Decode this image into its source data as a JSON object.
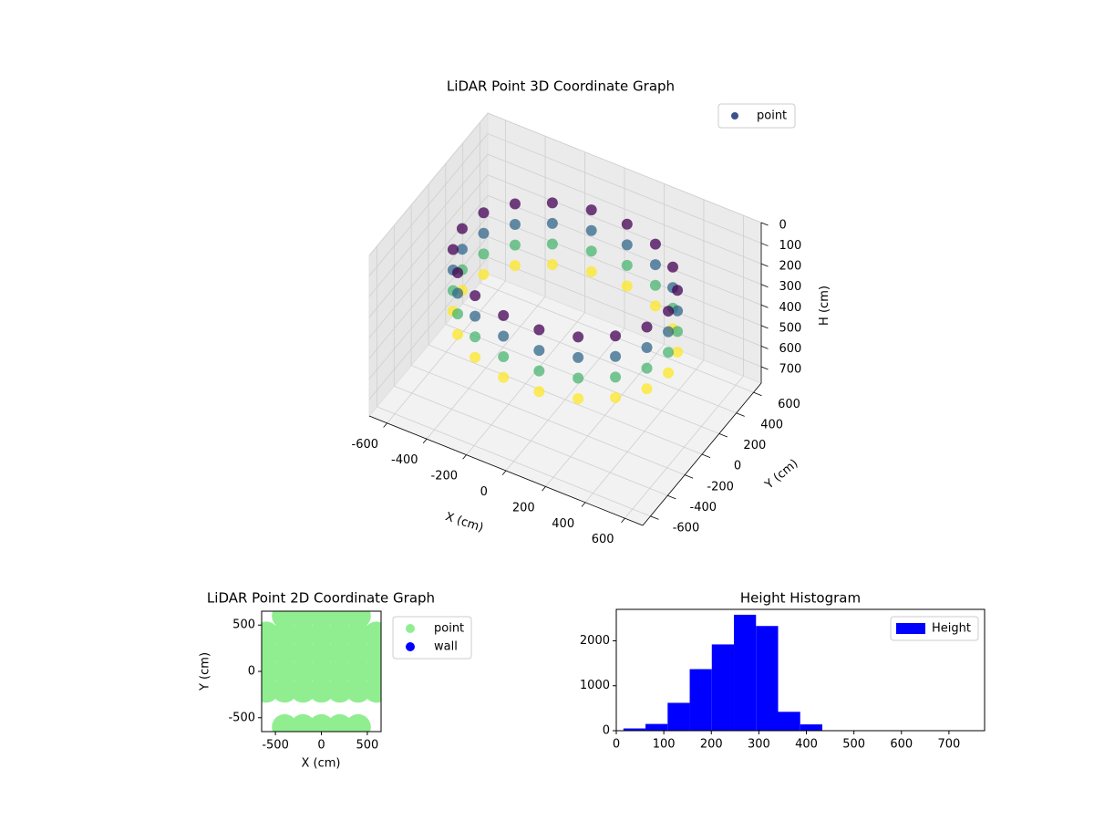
{
  "chart_data": [
    {
      "type": "scatter3d",
      "title": "LiDAR Point 3D Coordinate Graph",
      "xlabel": "X (cm)",
      "ylabel": "Y (cm)",
      "zlabel": "H (cm)",
      "xlim": [
        -690,
        690
      ],
      "ylim": [
        -690,
        690
      ],
      "zlim": [
        780,
        0
      ],
      "xticks": [
        -600,
        -400,
        -200,
        0,
        200,
        400,
        600
      ],
      "yticks": [
        -600,
        -400,
        -200,
        0,
        200,
        400,
        600
      ],
      "zticks": [
        0,
        100,
        200,
        300,
        400,
        500,
        600,
        700
      ],
      "colormap": "viridis",
      "legend": "upper right",
      "series": [
        {
          "name": "point",
          "color": "#3b528b",
          "x": [
            520,
            489,
            398,
            260,
            90,
            -90,
            -260,
            -398,
            -489,
            -520,
            -489,
            -398,
            -260,
            -90,
            90,
            260,
            398,
            489,
            520,
            489,
            398,
            260,
            90,
            -90,
            -260,
            -398,
            -489,
            -520,
            -489,
            -398,
            -260,
            -90,
            90,
            260,
            398,
            489,
            520,
            489,
            398,
            260,
            90,
            -90,
            -260,
            -398,
            -489,
            -520,
            -489,
            -398,
            -260,
            -90,
            90,
            260,
            398,
            489,
            520,
            489,
            398,
            260,
            90,
            -90,
            -260,
            -398,
            -489,
            -520,
            -489,
            -398,
            -260,
            -90,
            90,
            260,
            398,
            489
          ],
          "y": [
            0,
            178,
            334,
            450,
            512,
            512,
            450,
            334,
            178,
            0,
            -178,
            -334,
            -450,
            -512,
            -512,
            -450,
            -334,
            -178,
            0,
            178,
            334,
            450,
            512,
            512,
            450,
            334,
            178,
            0,
            -178,
            -334,
            -450,
            -512,
            -512,
            -450,
            -334,
            -178,
            0,
            178,
            334,
            450,
            512,
            512,
            450,
            334,
            178,
            0,
            -178,
            -334,
            -450,
            -512,
            -512,
            -450,
            -334,
            -178,
            0,
            178,
            334,
            450,
            512,
            512,
            450,
            334,
            178,
            0,
            -178,
            -334,
            -450,
            -512,
            -512,
            -450,
            -334,
            -178
          ],
          "z": [
            150,
            150,
            150,
            150,
            150,
            150,
            150,
            150,
            150,
            150,
            150,
            150,
            150,
            150,
            150,
            150,
            150,
            150,
            250,
            250,
            250,
            250,
            250,
            250,
            250,
            250,
            250,
            250,
            250,
            250,
            250,
            250,
            250,
            250,
            250,
            250,
            350,
            350,
            350,
            350,
            350,
            350,
            350,
            350,
            350,
            350,
            350,
            350,
            350,
            350,
            350,
            350,
            350,
            350,
            450,
            450,
            450,
            450,
            450,
            450,
            450,
            450,
            450,
            450,
            450,
            450,
            450,
            450,
            450,
            450,
            450,
            450
          ]
        }
      ]
    },
    {
      "type": "scatter",
      "title": "LiDAR Point 2D Coordinate Graph",
      "xlabel": "X (cm)",
      "ylabel": "Y (cm)",
      "xlim": [
        -650,
        650
      ],
      "ylim": [
        -650,
        650
      ],
      "xticks": [
        -500,
        0,
        500
      ],
      "yticks": [
        -500,
        0,
        500
      ],
      "legend": "outside right",
      "series": [
        {
          "name": "point",
          "color": "#90ee90",
          "x": [
            -400,
            -200,
            0,
            200,
            400,
            -600,
            -400,
            -200,
            0,
            200,
            400,
            600,
            -600,
            -400,
            -200,
            0,
            200,
            400,
            600,
            -600,
            -400,
            -200,
            0,
            200,
            400,
            600,
            -600,
            -400,
            -200,
            0,
            200,
            400,
            600,
            -400,
            -200,
            0,
            200,
            400
          ],
          "y": [
            600,
            600,
            600,
            600,
            600,
            400,
            400,
            400,
            400,
            400,
            400,
            400,
            200,
            200,
            200,
            200,
            200,
            200,
            200,
            0,
            0,
            0,
            0,
            0,
            0,
            0,
            -200,
            -200,
            -200,
            -200,
            -200,
            -200,
            -200,
            -600,
            -600,
            -600,
            -600,
            -600
          ]
        },
        {
          "name": "wall",
          "color": "#0000ff",
          "x": [],
          "y": []
        }
      ]
    },
    {
      "type": "histogram",
      "title": "Height Histogram",
      "bins": [
        15,
        61.5,
        108,
        154.5,
        201,
        247.5,
        294,
        340.5,
        387,
        433.5,
        480,
        526.5,
        573,
        619.5,
        666,
        712.5,
        759
      ],
      "counts": [
        50,
        150,
        620,
        1370,
        1920,
        2580,
        2330,
        420,
        140,
        3,
        2,
        2,
        1,
        1,
        1,
        2
      ],
      "color": "#0000ff",
      "legend_label": "Height",
      "legend": "upper right",
      "xlim": [
        0,
        775
      ],
      "ylim": [
        0,
        2700
      ],
      "xticks": [
        0,
        100,
        200,
        300,
        400,
        500,
        600,
        700
      ],
      "yticks": [
        0,
        1000,
        2000
      ]
    }
  ]
}
